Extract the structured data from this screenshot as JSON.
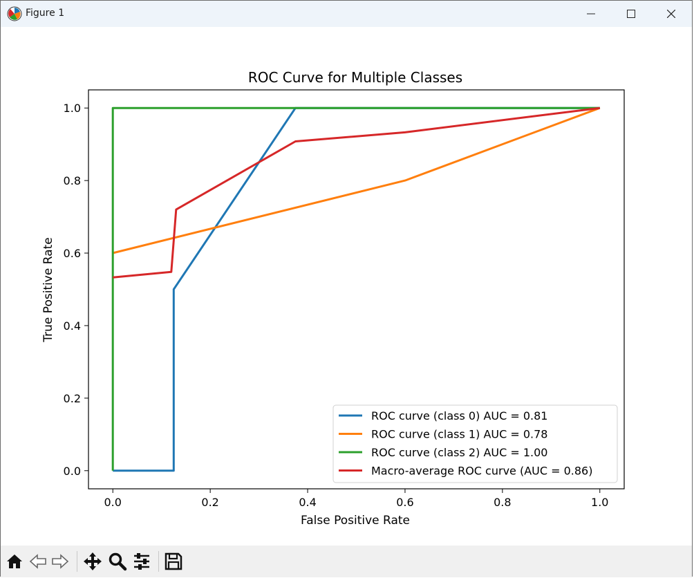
{
  "window": {
    "title": "Figure 1",
    "icon": "matplotlib-icon"
  },
  "toolbar": {
    "buttons": [
      {
        "name": "home-icon",
        "label": "Home"
      },
      {
        "name": "back-icon",
        "label": "Back"
      },
      {
        "name": "forward-icon",
        "label": "Forward"
      },
      {
        "name": "pan-icon",
        "label": "Pan"
      },
      {
        "name": "zoom-icon",
        "label": "Zoom"
      },
      {
        "name": "configure-subplots-icon",
        "label": "Configure subplots"
      },
      {
        "name": "save-icon",
        "label": "Save"
      }
    ]
  },
  "chart_data": {
    "type": "line",
    "title": "ROC Curve for Multiple Classes",
    "xlabel": "False Positive Rate",
    "ylabel": "True Positive Rate",
    "xlim": [
      -0.05,
      1.05
    ],
    "ylim": [
      -0.05,
      1.05
    ],
    "xticks": [
      0.0,
      0.2,
      0.4,
      0.6,
      0.8,
      1.0
    ],
    "xtick_labels": [
      "0.0",
      "0.2",
      "0.4",
      "0.6",
      "0.8",
      "1.0"
    ],
    "yticks": [
      0.0,
      0.2,
      0.4,
      0.6,
      0.8,
      1.0
    ],
    "ytick_labels": [
      "0.0",
      "0.2",
      "0.4",
      "0.6",
      "0.8",
      "1.0"
    ],
    "grid": false,
    "legend_position": "lower-right",
    "series": [
      {
        "name": "ROC curve (class 0) AUC = 0.81",
        "color": "#1f77b4",
        "x": [
          0.0,
          0.125,
          0.125,
          0.375,
          1.0
        ],
        "y": [
          0.0,
          0.0,
          0.5,
          1.0,
          1.0
        ]
      },
      {
        "name": "ROC curve (class 1) AUC = 0.78",
        "color": "#ff7f0e",
        "x": [
          0.0,
          0.6,
          1.0
        ],
        "y": [
          0.6,
          0.8,
          1.0
        ]
      },
      {
        "name": "ROC curve (class 2) AUC = 1.00",
        "color": "#2ca02c",
        "x": [
          0.0,
          0.0,
          1.0
        ],
        "y": [
          0.0,
          1.0,
          1.0
        ]
      },
      {
        "name": "Macro-average ROC curve (AUC = 0.86)",
        "color": "#d62728",
        "x": [
          0.0,
          0.12,
          0.13,
          0.375,
          0.6,
          1.0
        ],
        "y": [
          0.533,
          0.548,
          0.72,
          0.908,
          0.933,
          1.0
        ]
      }
    ]
  }
}
